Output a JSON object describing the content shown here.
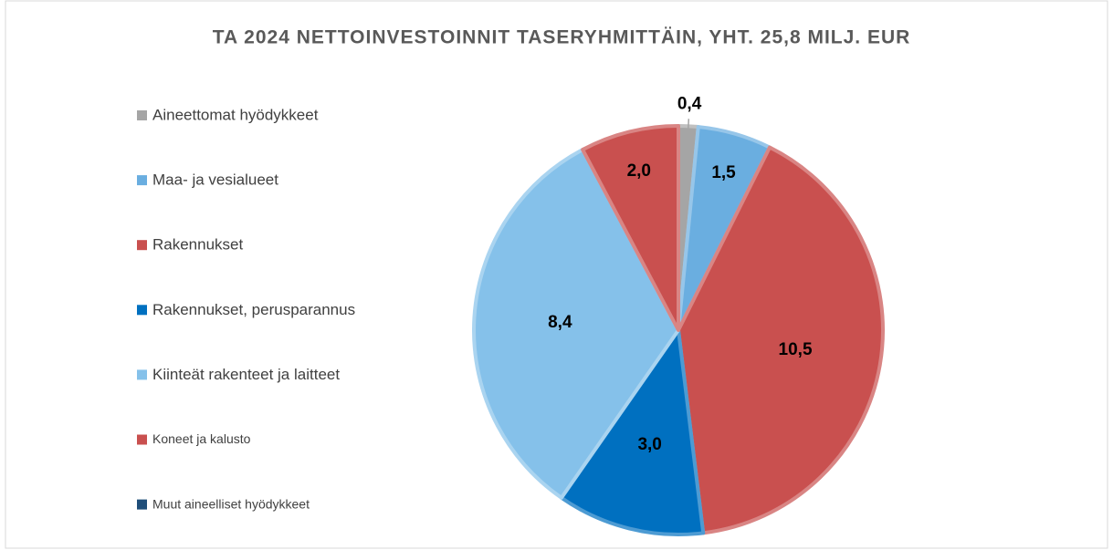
{
  "chart_data": {
    "type": "pie",
    "title": "TA 2024 NETTOINVESTOINNIT TASERYHMITTÄIN, YHT. 25,8 MILJ. EUR",
    "categories": [
      "Aineettomat hyödykkeet",
      "Maa- ja vesialueet",
      "Rakennukset",
      "Rakennukset, perusparannus",
      "Kiinteät rakenteet ja laitteet",
      "Koneet ja kalusto",
      "Muut aineelliset hyödykkeet"
    ],
    "values": [
      0.4,
      1.5,
      10.5,
      3.0,
      8.4,
      2.0,
      0
    ],
    "value_labels": [
      "0,4",
      "1,5",
      "10,5",
      "3,0",
      "8,4",
      "2,0",
      null
    ],
    "colors": [
      "#a5a5a5",
      "#6aaee0",
      "#c9504f",
      "#0070c0",
      "#85c1ea",
      "#c9504f",
      "#1f4e79"
    ],
    "legend": "left"
  }
}
